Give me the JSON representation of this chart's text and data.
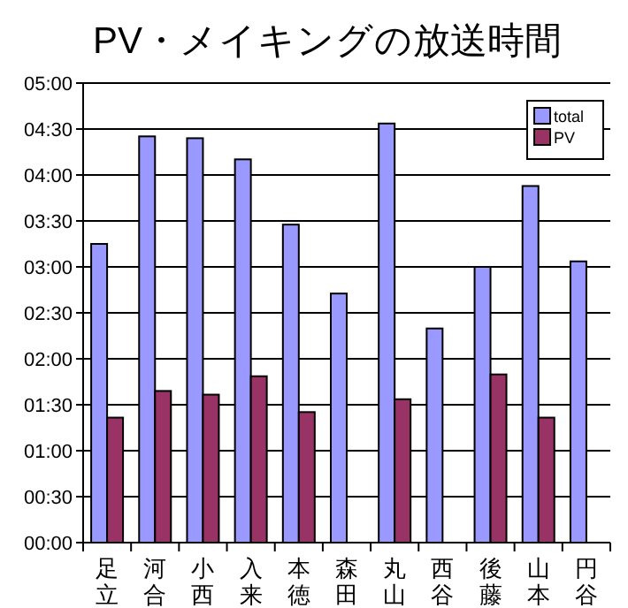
{
  "chart_data": {
    "type": "bar",
    "title": "PV・メイキングの放送時間",
    "categories": [
      "足立",
      "河合",
      "小西",
      "入来",
      "本徳",
      "森田",
      "丸山",
      "西谷",
      "後藤",
      "山本",
      "円谷"
    ],
    "series": [
      {
        "name": "total",
        "color": "#9999ff",
        "values": [
          3.25,
          4.42,
          4.4,
          4.17,
          3.46,
          2.71,
          4.56,
          2.33,
          3.0,
          3.88,
          3.06
        ]
      },
      {
        "name": "PV",
        "color": "#993366",
        "values": [
          1.36,
          1.65,
          1.61,
          1.81,
          1.42,
          null,
          1.56,
          null,
          1.83,
          1.36,
          null
        ]
      }
    ],
    "ylim": [
      0,
      5
    ],
    "yticks": [
      {
        "value": 0,
        "label": "00:00"
      },
      {
        "value": 0.5,
        "label": "00:30"
      },
      {
        "value": 1,
        "label": "01:00"
      },
      {
        "value": 1.5,
        "label": "01:30"
      },
      {
        "value": 2,
        "label": "02:00"
      },
      {
        "value": 2.5,
        "label": "02:30"
      },
      {
        "value": 3,
        "label": "03:00"
      },
      {
        "value": 3.5,
        "label": "03:30"
      },
      {
        "value": 4,
        "label": "04:00"
      },
      {
        "value": 4.5,
        "label": "04:30"
      },
      {
        "value": 5,
        "label": "05:00"
      }
    ],
    "grid": "y",
    "legend": "top right"
  }
}
